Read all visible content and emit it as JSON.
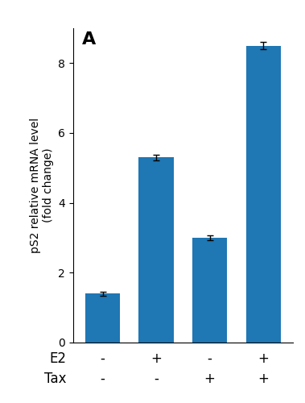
{
  "chart_data": {
    "type": "bar",
    "title": "A",
    "categories": [
      null,
      null,
      null,
      null
    ],
    "values": [
      1.4,
      5.3,
      3.0,
      8.5
    ],
    "errors": [
      0.05,
      0.08,
      0.07,
      0.1
    ],
    "ylabel": "pS2 relative mRNA level\n(fold change)",
    "ylim": [
      0,
      9
    ],
    "yticks": [
      0,
      2,
      4,
      6,
      8
    ],
    "sign_rows": [
      {
        "name": "E2",
        "labels": [
          "-",
          "+",
          "-",
          "+"
        ]
      },
      {
        "name": "Tax",
        "labels": [
          "-",
          "-",
          "+",
          "+"
        ]
      }
    ],
    "grid": false
  }
}
